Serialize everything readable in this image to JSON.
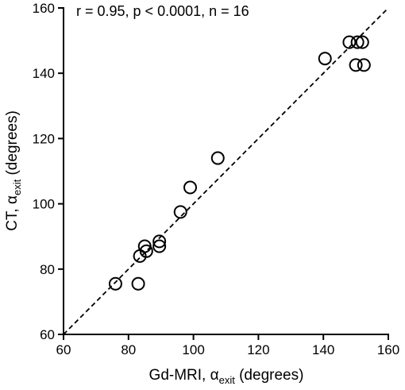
{
  "chart_data": {
    "type": "scatter",
    "annotation": "r = 0.95, p < 0.0001, n = 16",
    "xlabel": {
      "main": "Gd-MRI, α",
      "sub": "exit",
      "unit": " (degrees)"
    },
    "ylabel": {
      "main": "CT, α",
      "sub": "exit",
      "unit": " (degrees)"
    },
    "xlim": [
      60,
      160
    ],
    "ylim": [
      60,
      160
    ],
    "xticks": [
      60,
      80,
      100,
      120,
      140,
      160
    ],
    "yticks": [
      60,
      80,
      100,
      120,
      140,
      160
    ],
    "grid": false,
    "reference_line": {
      "style": "dashed",
      "from": [
        60,
        60
      ],
      "to": [
        160,
        160
      ]
    },
    "points": [
      {
        "x": 76,
        "y": 75.5
      },
      {
        "x": 83,
        "y": 75.5
      },
      {
        "x": 83.5,
        "y": 84
      },
      {
        "x": 85,
        "y": 87
      },
      {
        "x": 85.5,
        "y": 85.5
      },
      {
        "x": 89.5,
        "y": 87
      },
      {
        "x": 89.5,
        "y": 88.5
      },
      {
        "x": 96,
        "y": 97.5
      },
      {
        "x": 99,
        "y": 105
      },
      {
        "x": 107.5,
        "y": 114
      },
      {
        "x": 140.5,
        "y": 144.5
      },
      {
        "x": 148,
        "y": 149.5
      },
      {
        "x": 150.5,
        "y": 149.5
      },
      {
        "x": 152,
        "y": 149.5
      },
      {
        "x": 150,
        "y": 142.5
      },
      {
        "x": 152.5,
        "y": 142.5
      }
    ]
  }
}
